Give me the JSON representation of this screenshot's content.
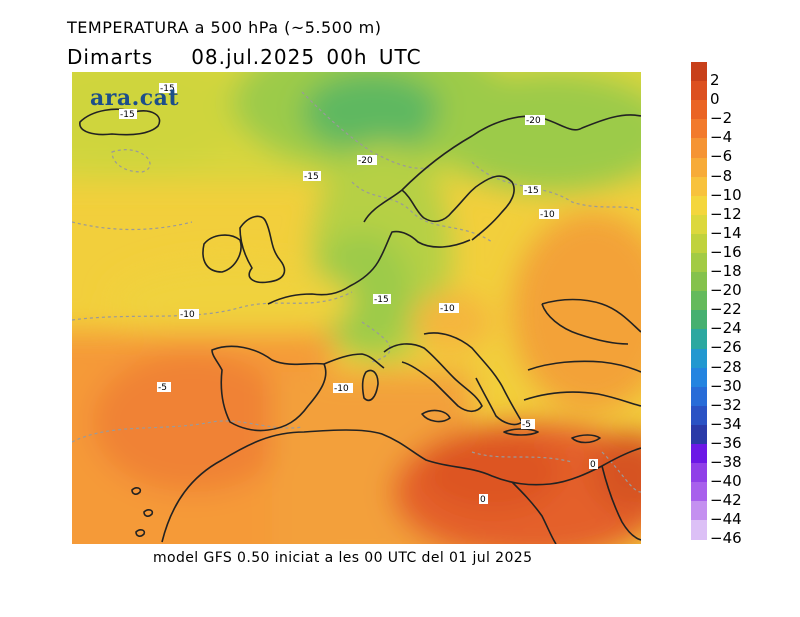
{
  "header": {
    "title": "TEMPERATURA a 500 hPa (~5.500 m)",
    "day": "Dimarts",
    "datetime": "08.jul.2025 00h UTC"
  },
  "logo": {
    "text": "ara.cat"
  },
  "footer": {
    "model_info": "model GFS 0.50 iniciat a les 00 UTC del 01 jul 2025"
  },
  "legend": [
    {
      "label": "2",
      "color": "#c8401a"
    },
    {
      "label": "0",
      "color": "#dc5020"
    },
    {
      "label": "−2",
      "color": "#ea6424"
    },
    {
      "label": "−4",
      "color": "#f27a2c"
    },
    {
      "label": "−6",
      "color": "#f59434"
    },
    {
      "label": "−8",
      "color": "#f7ab38"
    },
    {
      "label": "−10",
      "color": "#f8c23c"
    },
    {
      "label": "−12",
      "color": "#f4d63c"
    },
    {
      "label": "−14",
      "color": "#dcd83c"
    },
    {
      "label": "−16",
      "color": "#c0d23c"
    },
    {
      "label": "−18",
      "color": "#a2cb44"
    },
    {
      "label": "−20",
      "color": "#84c24c"
    },
    {
      "label": "−22",
      "color": "#64ba5c"
    },
    {
      "label": "−24",
      "color": "#46b070"
    },
    {
      "label": "−26",
      "color": "#2ca8a0"
    },
    {
      "label": "−28",
      "color": "#2298d0"
    },
    {
      "label": "−30",
      "color": "#2484e0"
    },
    {
      "label": "−32",
      "color": "#286cd8"
    },
    {
      "label": "−34",
      "color": "#2a52c4"
    },
    {
      "label": "−36",
      "color": "#2a3aa8"
    },
    {
      "label": "−38",
      "color": "#6c18e6"
    },
    {
      "label": "−40",
      "color": "#9040e8"
    },
    {
      "label": "−42",
      "color": "#a860ec"
    },
    {
      "label": "−44",
      "color": "#c490f0"
    },
    {
      "label": "−46",
      "color": "#dcc0f6"
    }
  ],
  "contour_labels": [
    {
      "text": "-15",
      "lon_lat": "SW Iceland"
    },
    {
      "text": "-15",
      "lon_lat": "N of Iceland"
    },
    {
      "text": "-20",
      "lon_lat": "Scandinavia"
    },
    {
      "text": "-20",
      "lon_lat": "North Sea"
    },
    {
      "text": "-15",
      "lon_lat": "Norwegian coast"
    },
    {
      "text": "-15",
      "lon_lat": "Baltic"
    },
    {
      "text": "-10",
      "lon_lat": "Belarus"
    },
    {
      "text": "-15",
      "lon_lat": "Alps"
    },
    {
      "text": "-10",
      "lon_lat": "Hungary"
    },
    {
      "text": "-10",
      "lon_lat": "Atlantic"
    },
    {
      "text": "-10",
      "lon_lat": "Balearic"
    },
    {
      "text": "-5",
      "lon_lat": "Atlantic SW"
    },
    {
      "text": "-5",
      "lon_lat": "Crete"
    },
    {
      "text": "0",
      "lon_lat": "Libya"
    },
    {
      "text": "0",
      "lon_lat": "Levant"
    }
  ]
}
